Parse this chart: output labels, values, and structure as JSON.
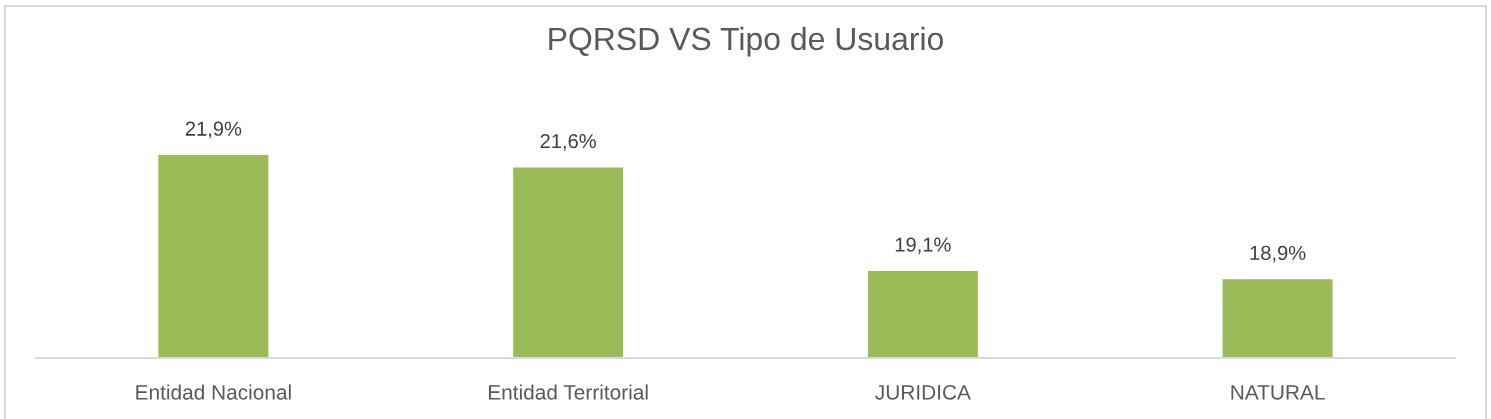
{
  "chart_data": {
    "type": "bar",
    "title": "PQRSD VS Tipo de Usuario",
    "categories": [
      "Entidad Nacional",
      "Entidad Territorial",
      "JURIDICA",
      "NATURAL"
    ],
    "values": [
      21.9,
      21.6,
      19.1,
      18.9
    ],
    "value_labels": [
      "21,9%",
      "21,6%",
      "19,1%",
      "18,9%"
    ],
    "color": "#9bbb59",
    "ylim": [
      17,
      25.5
    ],
    "tick_labels": "x",
    "grid": false,
    "legend": false
  }
}
